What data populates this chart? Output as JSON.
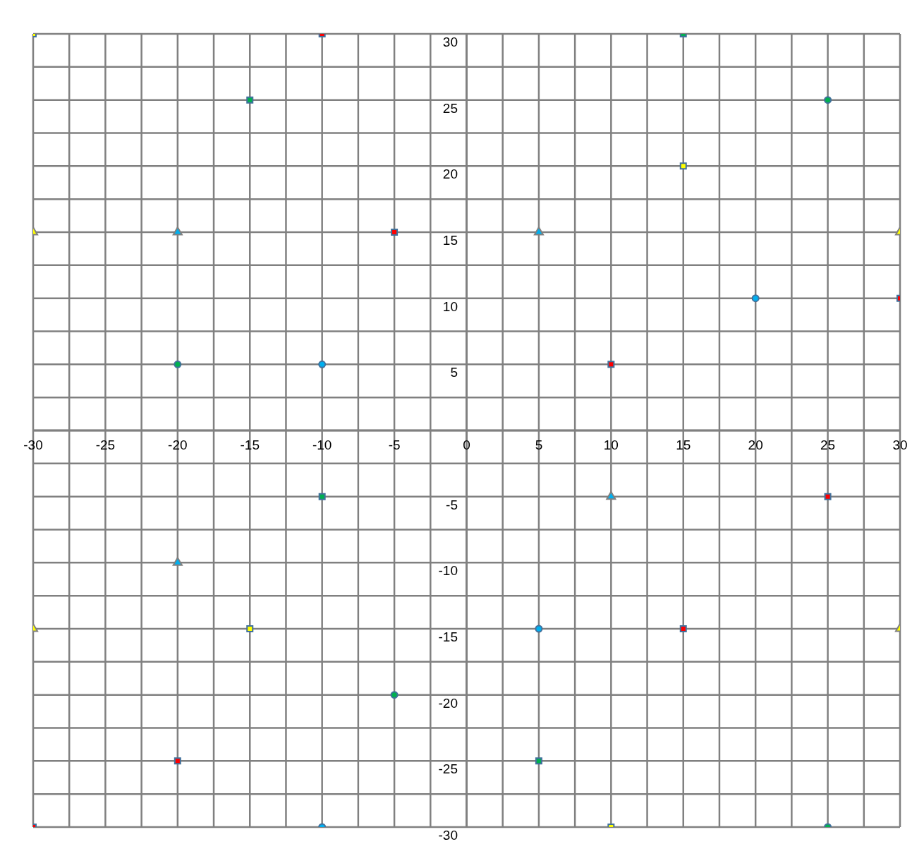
{
  "chart_data": {
    "type": "scatter",
    "grid": true,
    "legend": false,
    "xlim": [
      -30,
      30
    ],
    "ylim": [
      -30,
      30
    ],
    "xticks": [
      -30,
      {
        "value": -27.5,
        "label": null
      },
      -25,
      {
        "value": -22.5,
        "label": null
      },
      -20,
      {
        "value": -17.5,
        "label": null
      },
      -15,
      {
        "value": -12.5,
        "label": null
      },
      -10,
      {
        "value": -7.5,
        "label": null
      },
      -5,
      {
        "value": -2.5,
        "label": null
      },
      0,
      {
        "value": 2.5,
        "label": null
      },
      5,
      {
        "value": 7.5,
        "label": null
      },
      10,
      {
        "value": 12.5,
        "label": null
      },
      15,
      {
        "value": 17.5,
        "label": null
      },
      20,
      {
        "value": 22.5,
        "label": null
      },
      25,
      {
        "value": 27.5,
        "label": null
      },
      30
    ],
    "yticks": [
      -30,
      {
        "value": -27.5,
        "label": null
      },
      -25,
      {
        "value": -22.5,
        "label": null
      },
      -20,
      {
        "value": -17.5,
        "label": null
      },
      -15,
      {
        "value": -12.5,
        "label": null
      },
      -10,
      {
        "value": -7.5,
        "label": null
      },
      -5,
      {
        "value": -2.5,
        "label": null
      },
      {
        "value": 0,
        "label": null
      },
      {
        "value": 2.5,
        "label": null
      },
      5,
      {
        "value": 7.5,
        "label": null
      },
      10,
      {
        "value": 12.5,
        "label": null
      },
      15,
      {
        "value": 17.5,
        "label": null
      },
      20,
      {
        "value": 22.5,
        "label": null
      },
      25,
      {
        "value": 27.5,
        "label": null
      },
      30
    ],
    "series": [
      {
        "marker": "square",
        "color": "#ffff00",
        "x": [
          -30,
          15,
          -15,
          10
        ],
        "values": [
          30,
          20,
          -15,
          -30
        ]
      },
      {
        "marker": "square",
        "color": "#ff0000",
        "x": [
          -5,
          10,
          -20,
          15
        ],
        "values": [
          15,
          5,
          -25,
          -15
        ]
      },
      {
        "marker": "square",
        "color": "#ff0000",
        "x": [
          -10,
          30,
          -30,
          25
        ],
        "values": [
          30,
          10,
          -30,
          -5
        ]
      },
      {
        "marker": "square",
        "color": "#00b050",
        "x": [
          -15,
          15,
          -10,
          5
        ],
        "values": [
          25,
          30,
          -5,
          -25
        ]
      },
      {
        "marker": "circle",
        "color": "#00b050",
        "x": [
          -20,
          25,
          -5,
          25
        ],
        "values": [
          5,
          25,
          -20,
          -30
        ]
      },
      {
        "marker": "circle",
        "color": "#00b0f0",
        "x": [
          -10,
          20,
          5,
          -10
        ],
        "values": [
          5,
          10,
          -15,
          -30
        ]
      },
      {
        "marker": "triangle",
        "color": "#00b0f0",
        "x": [
          -20,
          5,
          -20,
          10
        ],
        "values": [
          15,
          15,
          -10,
          -5
        ]
      },
      {
        "marker": "triangle",
        "color": "#ffff00",
        "x": [
          -30,
          30,
          -30,
          30
        ],
        "values": [
          15,
          15,
          -15,
          -15
        ]
      }
    ]
  }
}
